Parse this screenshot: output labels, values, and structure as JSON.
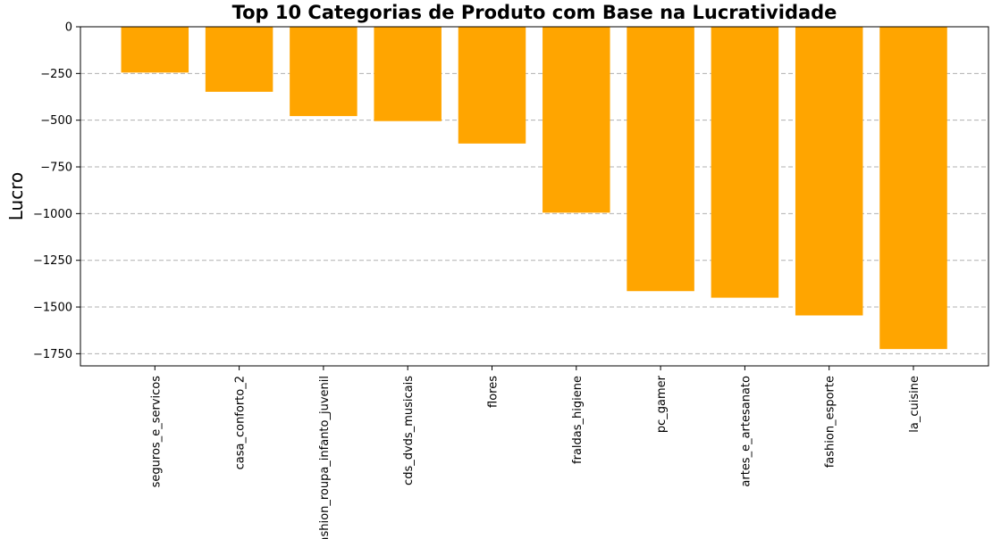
{
  "chart_data": {
    "type": "bar",
    "title": "Top 10 Categorias de Produto com Base na Lucratividade",
    "xlabel": "",
    "ylabel": "Lucro",
    "categories": [
      "seguros_e_servicos",
      "casa_conforto_2",
      "fashion_roupa_infanto_juvenil",
      "cds_dvds_musicais",
      "flores",
      "fraldas_higiene",
      "pc_gamer",
      "artes_e_artesanato",
      "fashion_esporte",
      "la_cuisine"
    ],
    "values": [
      -245,
      -348,
      -478,
      -505,
      -625,
      -995,
      -1415,
      -1450,
      -1545,
      -1725
    ],
    "ylim": [
      -1815,
      0
    ],
    "yticks": [
      0,
      -250,
      -500,
      -750,
      -1000,
      -1250,
      -1500,
      -1750
    ],
    "ytick_labels": [
      "0",
      "−250",
      "−500",
      "−750",
      "−1000",
      "−1250",
      "−1500",
      "−1750"
    ],
    "grid": "y-dashed",
    "legend": "none",
    "bar_color": "#ffa500",
    "grid_color": "#b0b0b0"
  }
}
